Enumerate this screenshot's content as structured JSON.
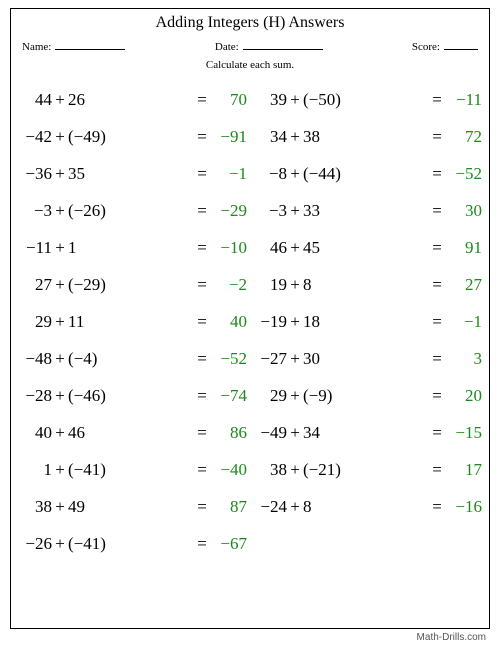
{
  "title": "Adding Integers (H) Answers",
  "labels": {
    "name": "Name:",
    "date": "Date:",
    "score": "Score:"
  },
  "instructions": "Calculate each sum.",
  "footer": "Math-Drills.com",
  "colors": {
    "text": "#000000",
    "answer": "#1a8a1a",
    "border": "#000000",
    "footer": "#555555",
    "bg": "#ffffff"
  },
  "font": {
    "body": "Georgia, 'Times New Roman', serif",
    "title_size": 16,
    "eq_size": 17,
    "small_size": 11
  },
  "left": [
    {
      "a": "44",
      "b": "26",
      "ans": "70"
    },
    {
      "a": "−42",
      "b": "(−49)",
      "ans": "−91"
    },
    {
      "a": "−36",
      "b": "35",
      "ans": "−1"
    },
    {
      "a": "−3",
      "b": "(−26)",
      "ans": "−29"
    },
    {
      "a": "−11",
      "b": "1",
      "ans": "−10"
    },
    {
      "a": "27",
      "b": "(−29)",
      "ans": "−2"
    },
    {
      "a": "29",
      "b": "11",
      "ans": "40"
    },
    {
      "a": "−48",
      "b": "(−4)",
      "ans": "−52"
    },
    {
      "a": "−28",
      "b": "(−46)",
      "ans": "−74"
    },
    {
      "a": "40",
      "b": "46",
      "ans": "86"
    },
    {
      "a": "1",
      "b": "(−41)",
      "ans": "−40"
    },
    {
      "a": "38",
      "b": "49",
      "ans": "87"
    },
    {
      "a": "−26",
      "b": "(−41)",
      "ans": "−67"
    }
  ],
  "right": [
    {
      "a": "39",
      "b": "(−50)",
      "ans": "−11"
    },
    {
      "a": "34",
      "b": "38",
      "ans": "72"
    },
    {
      "a": "−8",
      "b": "(−44)",
      "ans": "−52"
    },
    {
      "a": "−3",
      "b": "33",
      "ans": "30"
    },
    {
      "a": "46",
      "b": "45",
      "ans": "91"
    },
    {
      "a": "19",
      "b": "8",
      "ans": "27"
    },
    {
      "a": "−19",
      "b": "18",
      "ans": "−1"
    },
    {
      "a": "−27",
      "b": "30",
      "ans": "3"
    },
    {
      "a": "29",
      "b": "(−9)",
      "ans": "20"
    },
    {
      "a": "−49",
      "b": "34",
      "ans": "−15"
    },
    {
      "a": "38",
      "b": "(−21)",
      "ans": "17"
    },
    {
      "a": "−24",
      "b": "8",
      "ans": "−16"
    }
  ]
}
